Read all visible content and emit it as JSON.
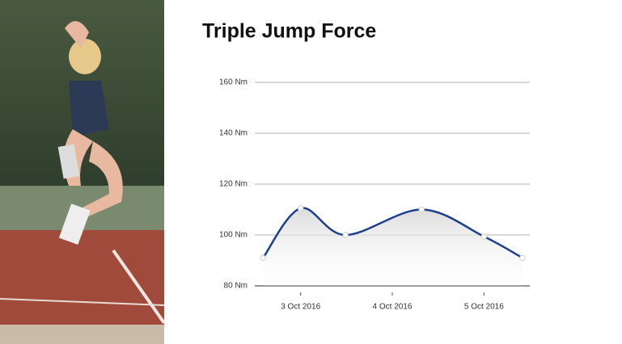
{
  "chart_data": {
    "type": "line",
    "title": "Triple Jump Force",
    "x": [
      2.59,
      3.0,
      3.49,
      4.32,
      5.0,
      5.42
    ],
    "series": [
      {
        "color": "#1f3f8f",
        "values": [
          91,
          110.5,
          100,
          110,
          99.4,
          91
        ]
      }
    ],
    "xlim": [
      2.5,
      5.5
    ],
    "xticks": [
      {
        "value": 3,
        "label": "3 Oct 2016"
      },
      {
        "value": 4,
        "label": "4 Oct 2016"
      },
      {
        "value": 5,
        "label": "5 Oct 2016"
      }
    ],
    "ylim": [
      80,
      160
    ],
    "yticks": [
      {
        "value": 80,
        "label": "80 Nm"
      },
      {
        "value": 100,
        "label": "100 Nm"
      },
      {
        "value": 120,
        "label": "120 Nm"
      },
      {
        "value": 140,
        "label": "140 Nm"
      },
      {
        "value": 160,
        "label": "160 Nm"
      }
    ],
    "grid": true,
    "smooth": true
  }
}
